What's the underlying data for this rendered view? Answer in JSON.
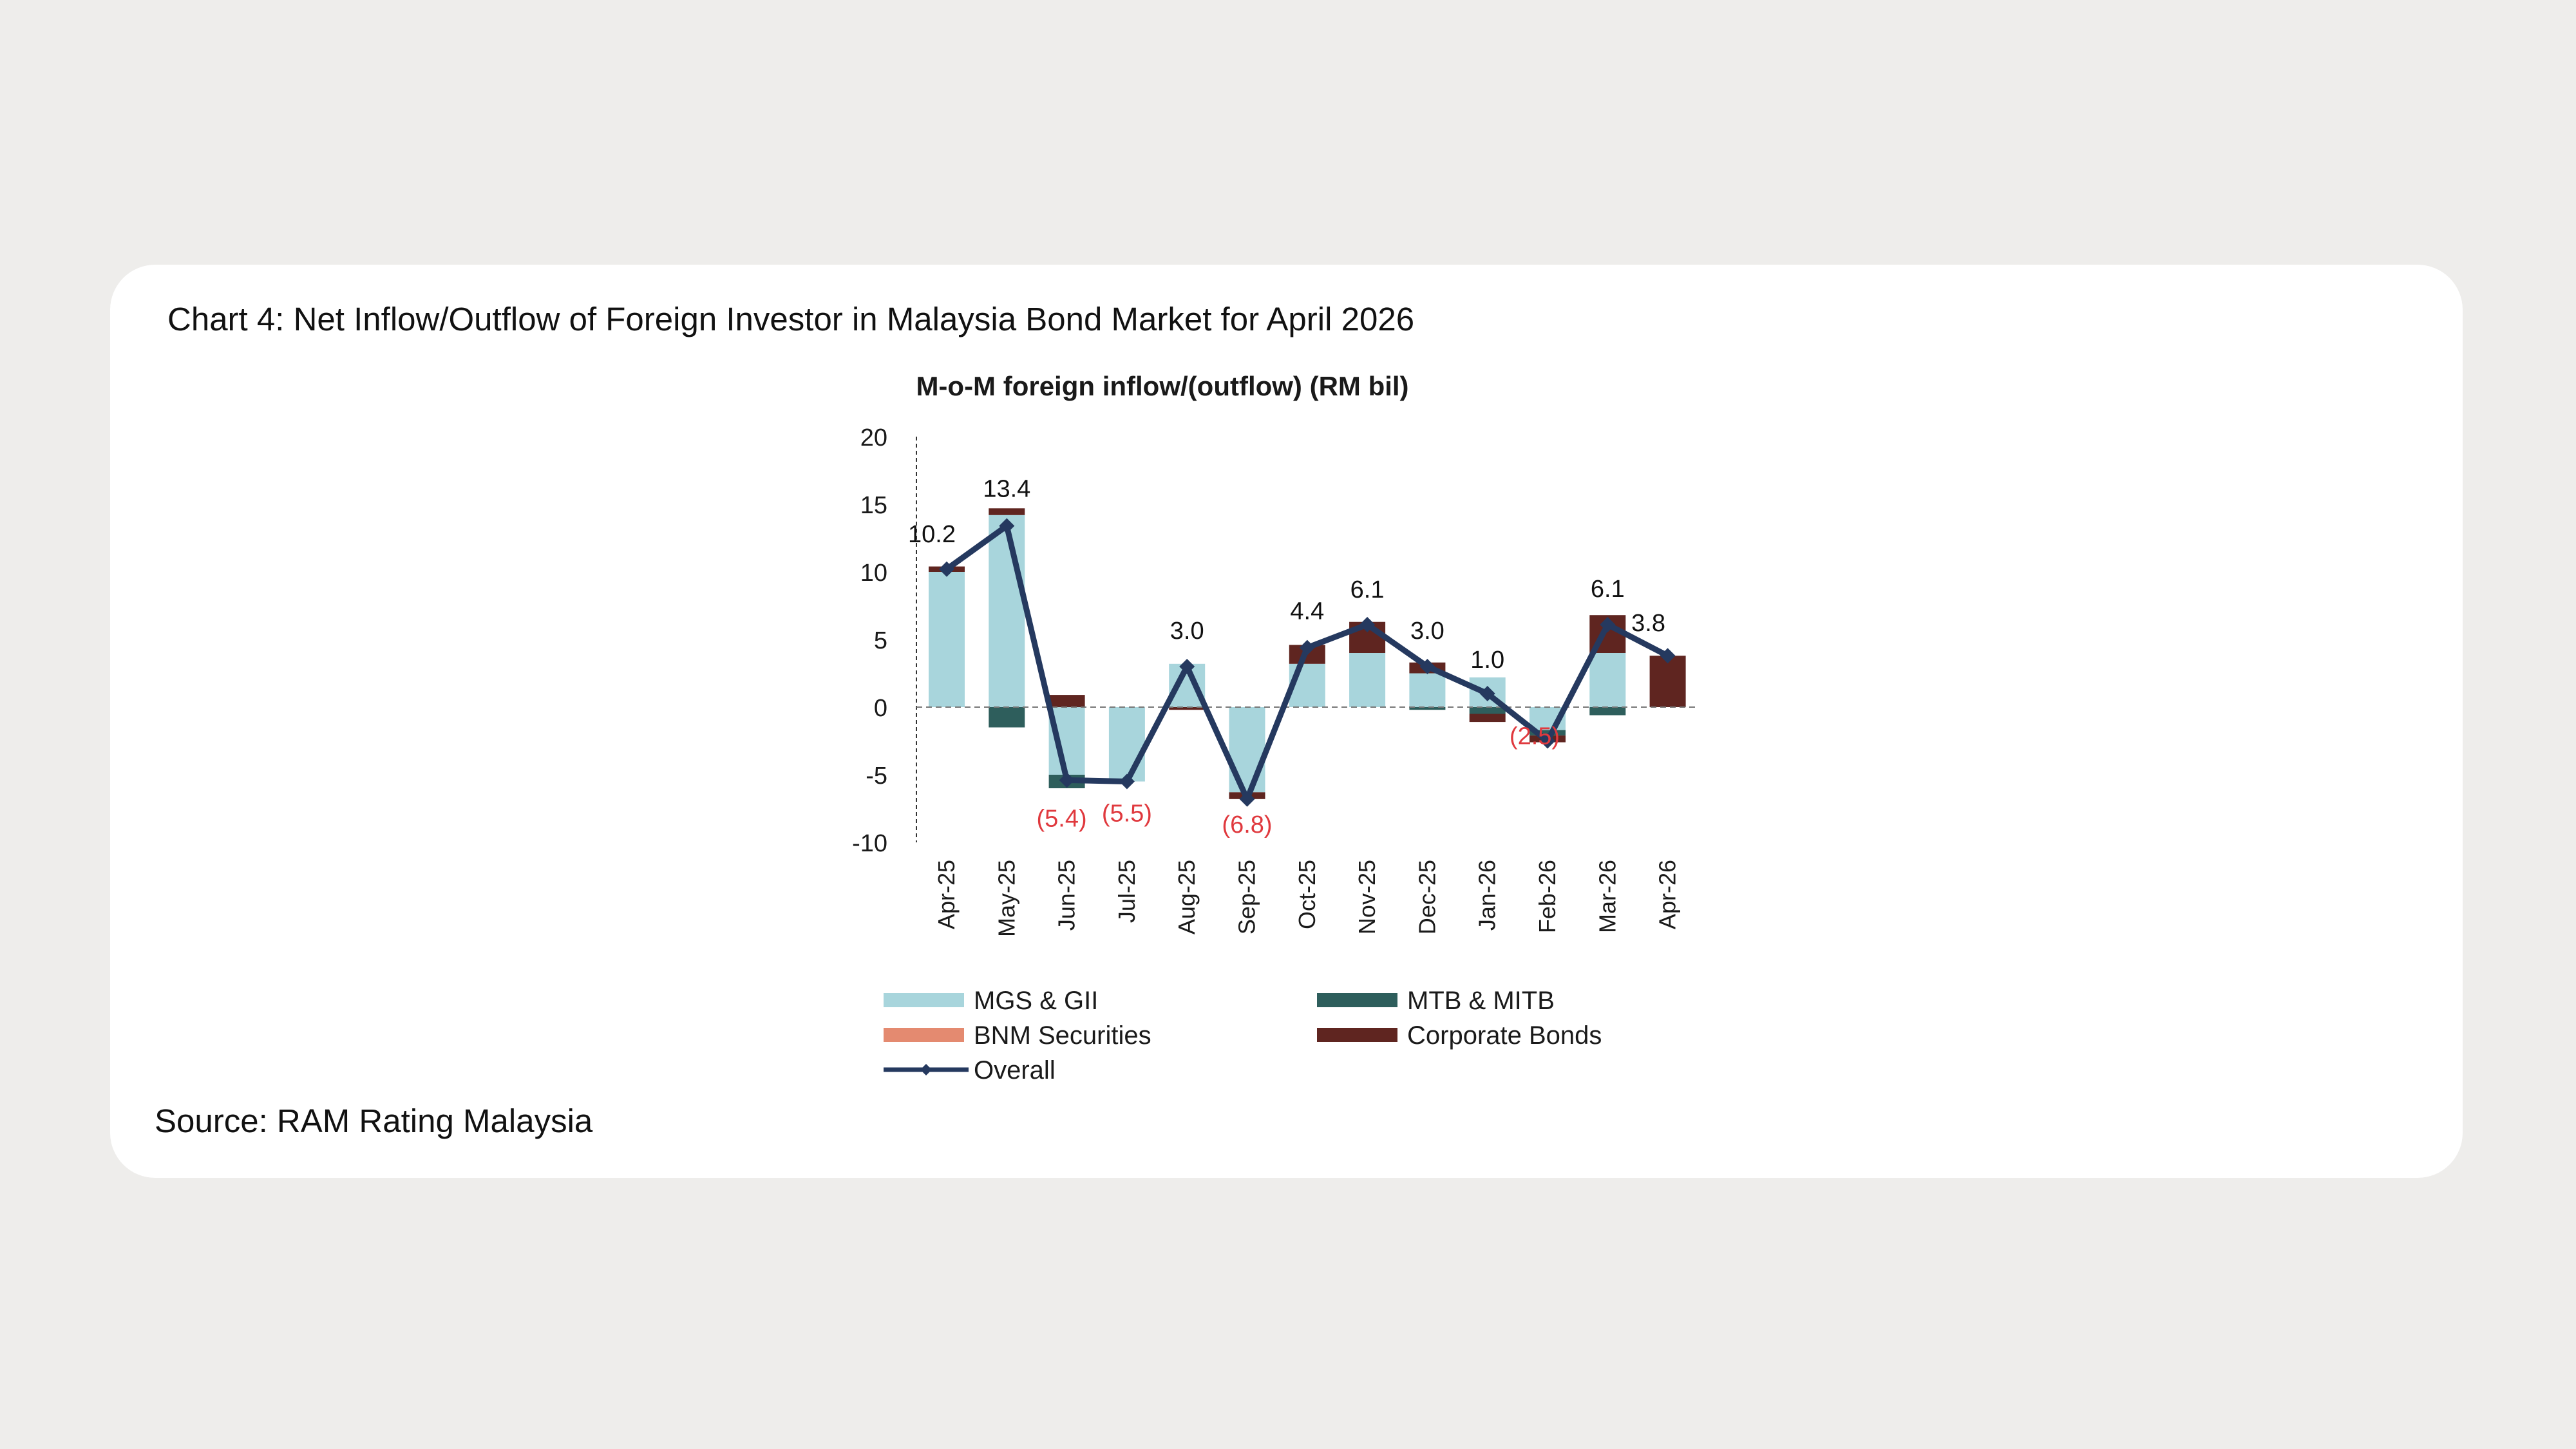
{
  "caption": "Chart 4: Net Inflow/Outflow of Foreign Investor in Malaysia Bond Market for April 2026",
  "source": "Source: RAM Rating Malaysia",
  "chart_data": {
    "type": "bar",
    "title": "M-o-M foreign inflow/(outflow) (RM bil)",
    "categories": [
      "Apr-25",
      "May-25",
      "Jun-25",
      "Jul-25",
      "Aug-25",
      "Sep-25",
      "Oct-25",
      "Nov-25",
      "Dec-25",
      "Jan-26",
      "Feb-26",
      "Mar-26",
      "Apr-26"
    ],
    "ylim": [
      -10,
      20
    ],
    "yticks": [
      20,
      15,
      10,
      5,
      0,
      -5,
      -10
    ],
    "stacked": true,
    "series": [
      {
        "name": "MGS & GII",
        "type": "bar",
        "color": "#a8d5dc",
        "values": [
          10.0,
          14.2,
          -5.0,
          -5.5,
          3.2,
          -6.3,
          3.2,
          4.0,
          2.5,
          2.2,
          -1.7,
          4.0,
          0.0
        ]
      },
      {
        "name": "MTB & MITB",
        "type": "bar",
        "color": "#2e5e5c",
        "values": [
          0.0,
          -1.5,
          -1.0,
          0.0,
          0.0,
          0.0,
          0.0,
          0.0,
          -0.2,
          -0.5,
          -0.4,
          -0.6,
          0.0
        ]
      },
      {
        "name": "BNM Securities",
        "type": "bar",
        "color": "#e48a70",
        "values": [
          0,
          0,
          0,
          0,
          0,
          0,
          0,
          0,
          0,
          0,
          0,
          0,
          0
        ]
      },
      {
        "name": "Corporate Bonds",
        "type": "bar",
        "color": "#5f2520",
        "values": [
          0.4,
          0.5,
          0.9,
          0.0,
          -0.2,
          -0.5,
          1.4,
          2.3,
          0.8,
          -0.6,
          -0.5,
          2.8,
          3.8
        ]
      },
      {
        "name": "Overall",
        "type": "line",
        "color": "#25395f",
        "values": [
          10.2,
          13.4,
          -5.4,
          -5.5,
          3.0,
          -6.8,
          4.4,
          6.1,
          3.0,
          1.0,
          -2.5,
          6.1,
          3.8
        ]
      }
    ],
    "data_labels": [
      "10.2",
      "13.4",
      "(5.4)",
      "(5.5)",
      "3.0",
      "(6.8)",
      "4.4",
      "6.1",
      "3.0",
      "1.0",
      "(2.5)",
      "6.1",
      "3.8"
    ],
    "legend_position": "bottom",
    "colors": {
      "positive_label": "#111111",
      "negative_label": "#e0393e",
      "axis": "#333333",
      "zero_line": "#777777"
    }
  }
}
